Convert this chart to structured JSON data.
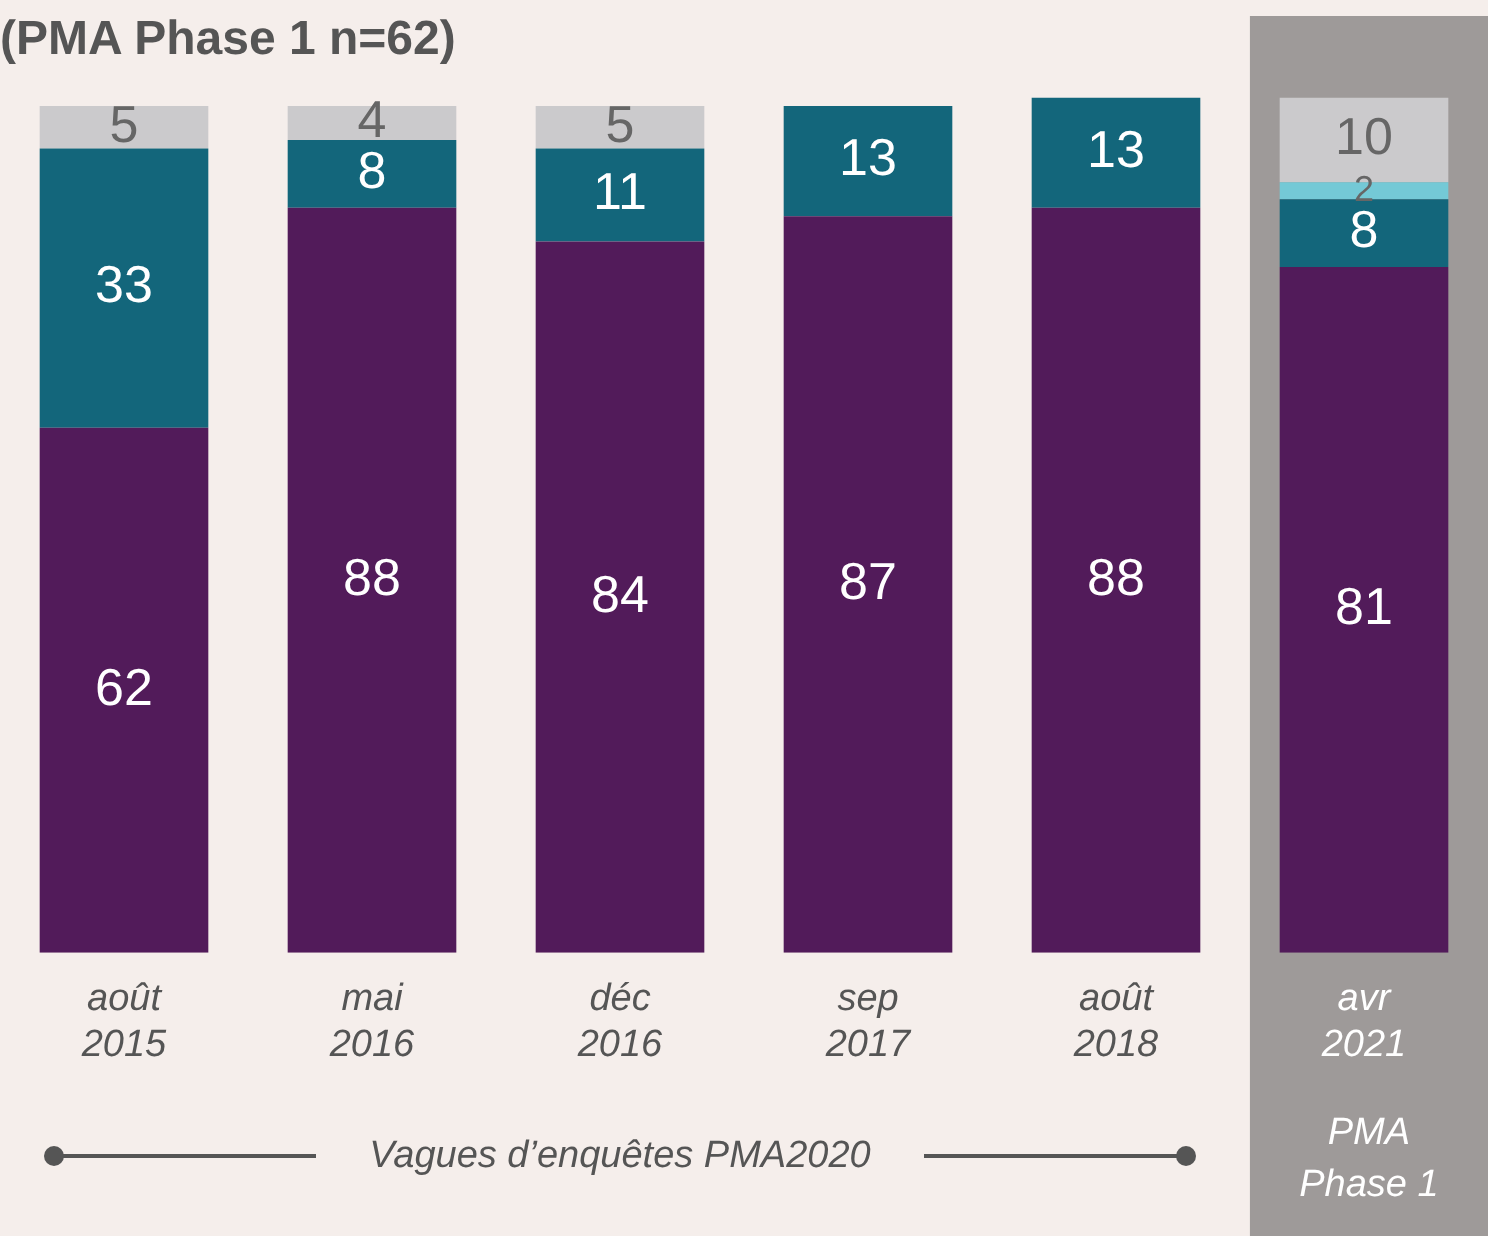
{
  "chart_data": {
    "type": "bar",
    "title": "(PMA Phase 1 n=62)",
    "categories": [
      "août 2015",
      "mai 2016",
      "déc 2016",
      "sep 2017",
      "août 2018",
      "avr 2021"
    ],
    "stacked": true,
    "series": [
      {
        "color": "#521b5a",
        "values": [
          62,
          88,
          84,
          87,
          88,
          81
        ]
      },
      {
        "color": "#13667b",
        "values": [
          33,
          8,
          11,
          13,
          13,
          8
        ]
      },
      {
        "color": "#74c9d6",
        "values": [
          null,
          null,
          null,
          null,
          null,
          2
        ]
      },
      {
        "color": "#cbcacc",
        "values": [
          5,
          4,
          5,
          null,
          null,
          10
        ]
      }
    ],
    "ylim": [
      0,
      101
    ],
    "tick_labels": "x",
    "data_labels": true,
    "grid": false,
    "legend": false,
    "bands": [
      {
        "axis": "x",
        "from": "avr 2021",
        "to": "avr 2021",
        "label": "PMA Phase 1",
        "color": "#9e9a99"
      }
    ],
    "annotations": [
      "Vagues d’enquêtes PMA2020"
    ]
  }
}
